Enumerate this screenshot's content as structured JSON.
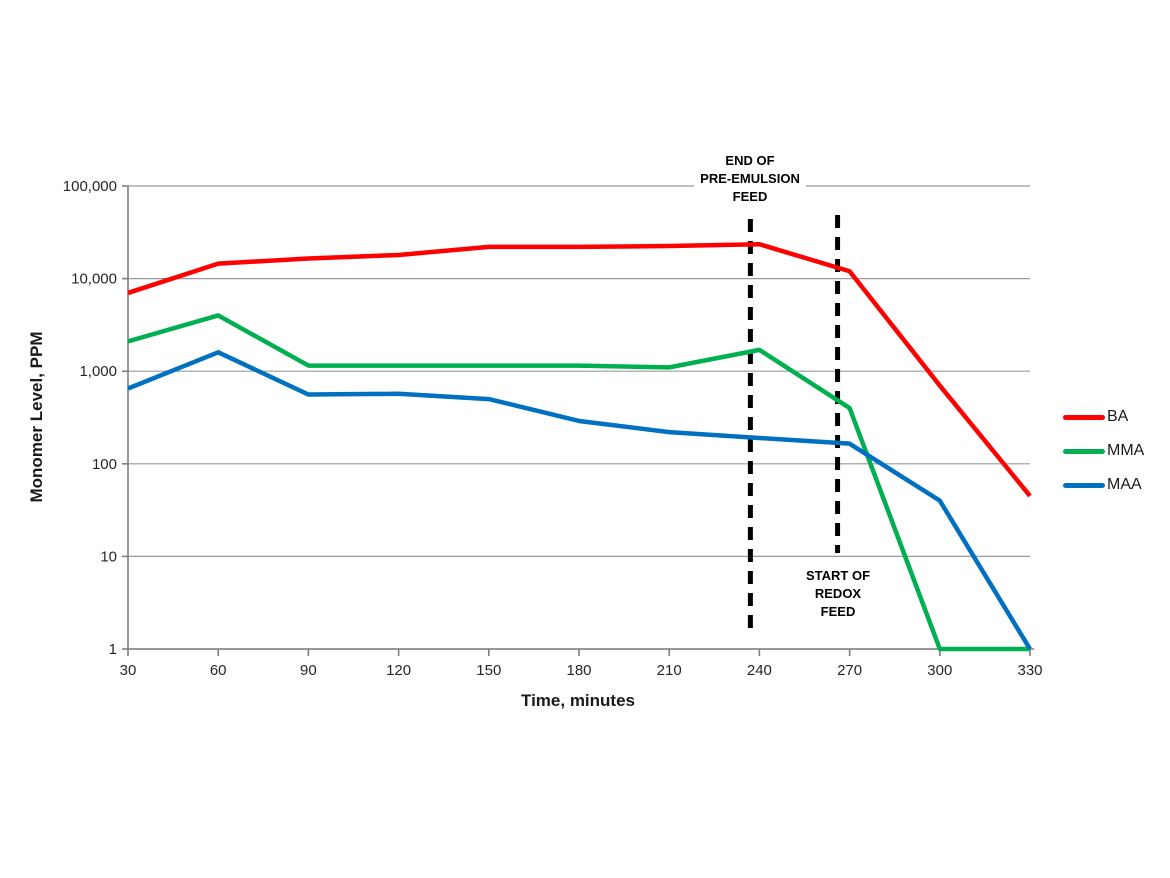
{
  "chart_data": {
    "type": "line",
    "title": "",
    "xlabel": "Time, minutes",
    "ylabel": "Monomer Level, PPM",
    "x": [
      30,
      60,
      90,
      120,
      150,
      180,
      210,
      240,
      270,
      300,
      330
    ],
    "x_tick_labels": [
      "30",
      "60",
      "90",
      "120",
      "150",
      "180",
      "210",
      "240",
      "270",
      "300",
      "330"
    ],
    "xlim": [
      30,
      330
    ],
    "y_scale": "log",
    "ylim": [
      1,
      100000
    ],
    "y_ticks": [
      1,
      10,
      100,
      1000,
      10000,
      100000
    ],
    "y_tick_labels": [
      "1",
      "10",
      "100",
      "1,000",
      "10,000",
      "100,000"
    ],
    "grid": "horizontal",
    "grid_color": "#9a9a9a",
    "axis_color": "#7f7f7f",
    "background_color": "#ffffff",
    "legend_position": "right",
    "series": [
      {
        "name": "BA",
        "color": "#FF0000",
        "values": [
          7000,
          14500,
          16500,
          18000,
          22000,
          22000,
          22500,
          23500,
          12000,
          700,
          45
        ]
      },
      {
        "name": "MMA",
        "color": "#00B050",
        "values": [
          2100,
          4000,
          1150,
          1150,
          1150,
          1150,
          1100,
          1700,
          400,
          1,
          1
        ]
      },
      {
        "name": "MAA",
        "color": "#0070C0",
        "values": [
          650,
          1600,
          560,
          570,
          500,
          290,
          220,
          190,
          165,
          40,
          1
        ]
      }
    ],
    "annotations": [
      {
        "text": "END OF\nPRE-EMULSION\nFEED",
        "time": 237,
        "line_style": "dashed",
        "line_color": "#000000"
      },
      {
        "text": "START OF\nREDOX\nFEED",
        "time": 266,
        "line_style": "dashed",
        "line_color": "#000000"
      }
    ]
  }
}
